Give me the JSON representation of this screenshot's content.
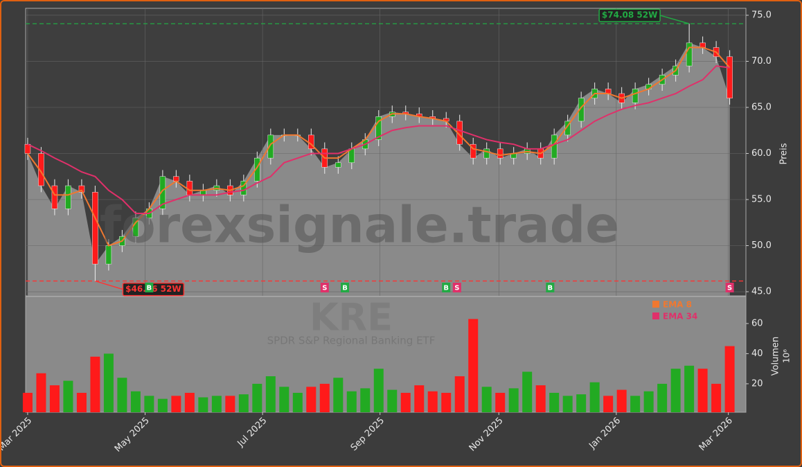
{
  "watermark": "forexsignale.trade",
  "symbol": "KRE",
  "symbol_name": "SPDR S&P Regional Banking ETF",
  "chart_data": [
    {
      "type": "candlestick",
      "ylabel": "Preis",
      "x": [
        0,
        1,
        2,
        3,
        4,
        5,
        6,
        7,
        8,
        9,
        10,
        11,
        12,
        13,
        14,
        15,
        16,
        17,
        18,
        19,
        20,
        21,
        22,
        23,
        24,
        25,
        26,
        27,
        28,
        29,
        30,
        31,
        32,
        33,
        34,
        35,
        36,
        37,
        38,
        39,
        40,
        41,
        42,
        43,
        44,
        45,
        46,
        47,
        48,
        49,
        50,
        51,
        52
      ],
      "open": [
        61,
        60,
        56.5,
        54,
        56.5,
        55.8,
        48,
        50,
        51,
        53,
        54,
        57.5,
        57,
        55.5,
        56,
        56.5,
        55.5,
        57,
        59.5,
        62,
        62,
        62,
        60.5,
        58.5,
        59,
        60.5,
        61.5,
        64,
        64.5,
        64.3,
        64,
        63.8,
        63.5,
        61,
        59.5,
        60.5,
        59.5,
        60,
        60.5,
        59.5,
        62,
        63.5,
        66,
        67,
        66.5,
        65.5,
        67,
        67.5,
        68.5,
        69.5,
        72,
        71.5,
        70.5
      ],
      "high": [
        61.7,
        60.7,
        57.2,
        57.2,
        57.2,
        56.5,
        50.7,
        51.7,
        53.7,
        54.7,
        58.2,
        58.2,
        57.7,
        56.7,
        57.2,
        57.2,
        57.7,
        60.2,
        62.7,
        62.7,
        62.7,
        62.7,
        61.2,
        59.7,
        61.2,
        62.2,
        64.7,
        65.2,
        65.2,
        65,
        64.7,
        64.5,
        64.2,
        61.7,
        61.2,
        61.2,
        60.7,
        61.2,
        61.2,
        62.7,
        64.2,
        66.7,
        67.7,
        67.7,
        67.2,
        67.7,
        68.2,
        69.2,
        70.2,
        74.08,
        72.7,
        72.2,
        71.2
      ],
      "low": [
        59.3,
        55.8,
        53.3,
        53.3,
        55.1,
        46.16,
        47.3,
        49.3,
        50.3,
        52.3,
        53.3,
        56.3,
        54.8,
        54.8,
        55.3,
        54.8,
        54.8,
        56.3,
        58.8,
        61.3,
        61.3,
        59.8,
        57.8,
        57.8,
        58.3,
        59.8,
        60.8,
        63.3,
        63.6,
        63.3,
        63.1,
        62.8,
        60.3,
        58.8,
        58.8,
        58.8,
        58.8,
        59.3,
        58.8,
        58.8,
        61.3,
        62.8,
        65.3,
        65.8,
        64.8,
        64.8,
        66.3,
        66.8,
        67.8,
        68.8,
        70.8,
        69.8,
        65.3
      ],
      "close": [
        60,
        56.5,
        54,
        56.5,
        55.8,
        48,
        50,
        51,
        53,
        54,
        57.5,
        57,
        55.5,
        56,
        56.5,
        55.5,
        57,
        59.5,
        62,
        62,
        62,
        60.5,
        58.5,
        59,
        60.5,
        61.5,
        64,
        64.5,
        64.3,
        64,
        63.8,
        63.5,
        61,
        59.5,
        60.5,
        59.5,
        60,
        60.5,
        59.5,
        62,
        63.5,
        66,
        67,
        66.5,
        65.5,
        67,
        67.5,
        68.5,
        69.5,
        72,
        71.5,
        70.5,
        66
      ],
      "up_color": "#22aa22",
      "down_color": "#ff1a1a",
      "area_color": "#8a8a8a",
      "series": [
        {
          "name": "EMA 8",
          "color": "#f07830",
          "values": [
            60,
            58,
            55.5,
            55.5,
            56,
            53,
            50,
            50.5,
            52.5,
            54,
            56,
            57,
            56,
            56,
            56.2,
            56,
            56.5,
            58.5,
            61,
            62,
            62,
            61,
            59.5,
            59.5,
            60.5,
            61.5,
            63.5,
            64.3,
            64.3,
            64,
            63.8,
            63.5,
            62,
            60.5,
            60.2,
            59.8,
            60,
            60.2,
            60,
            61,
            63,
            65,
            66.5,
            66.5,
            66,
            66.5,
            67,
            68,
            69,
            71.5,
            71.5,
            71,
            69.3
          ]
        },
        {
          "name": "EMA 34",
          "color": "#e0306a",
          "values": [
            61,
            60.3,
            59.5,
            58.8,
            58,
            57.5,
            56,
            55,
            53.5,
            53.5,
            54.5,
            55,
            55.5,
            55.5,
            55.5,
            55.8,
            56,
            56.8,
            57.5,
            59,
            59.5,
            60,
            60,
            60,
            60.5,
            61,
            61.8,
            62.5,
            62.8,
            63,
            63,
            63,
            62.5,
            62,
            61.5,
            61.2,
            61,
            60.5,
            60.5,
            61,
            61.5,
            62.5,
            63.5,
            64.2,
            64.8,
            65.2,
            65.5,
            66,
            66.5,
            67.3,
            68,
            69.5,
            69.3
          ]
        }
      ],
      "annotations": [
        {
          "text": "$74.08 52W",
          "value": 74.08,
          "x": 49,
          "color": "#22aa44"
        },
        {
          "text": "$46.16 52W",
          "value": 46.16,
          "x": 5,
          "color": "#ff3333"
        }
      ],
      "signals": [
        {
          "x": 9,
          "label": "B"
        },
        {
          "x": 22,
          "label": "S"
        },
        {
          "x": 23.5,
          "label": "B"
        },
        {
          "x": 31,
          "label": "B"
        },
        {
          "x": 31.8,
          "label": "S"
        },
        {
          "x": 38.7,
          "label": "B"
        },
        {
          "x": 52,
          "label": "S"
        }
      ],
      "xlim": [
        -0.15,
        53.2
      ],
      "xticks": [
        {
          "value": 0,
          "label": "Mar 2025"
        },
        {
          "value": 8.7,
          "label": "May 2025"
        },
        {
          "value": 17.4,
          "label": "Jul 2025"
        },
        {
          "value": 26.1,
          "label": "Sep 2025"
        },
        {
          "value": 34.9,
          "label": "Nov 2025"
        },
        {
          "value": 43.6,
          "label": "Jan 2026"
        },
        {
          "value": 51.9,
          "label": "Mar 2026"
        }
      ],
      "ylim": [
        44.55,
        75.75
      ],
      "yticks": [
        {
          "value": 45,
          "label": "45.0"
        },
        {
          "value": 50,
          "label": "50.0"
        },
        {
          "value": 55,
          "label": "55.0"
        },
        {
          "value": 60,
          "label": "60.0"
        },
        {
          "value": 65,
          "label": "65.0"
        },
        {
          "value": 70,
          "label": "70.0"
        },
        {
          "value": 75,
          "label": "75.0"
        }
      ],
      "grid": true
    },
    {
      "type": "bar",
      "ylabel": "Volumen",
      "yunit": "10⁶",
      "values": [
        14,
        27,
        19,
        22,
        14,
        38,
        40,
        24,
        15,
        12,
        10,
        12,
        14,
        11,
        12,
        12,
        13,
        20,
        25,
        18,
        14,
        18,
        20,
        24,
        15,
        17,
        30,
        16,
        14,
        19,
        15,
        14,
        25,
        63,
        18,
        14,
        17,
        28,
        19,
        14,
        12,
        13,
        21,
        12,
        16,
        12,
        15,
        20,
        30,
        32,
        30,
        20,
        45
      ],
      "ylim": [
        1.1,
        77.9
      ],
      "yticks": [
        20,
        40,
        60
      ]
    }
  ]
}
